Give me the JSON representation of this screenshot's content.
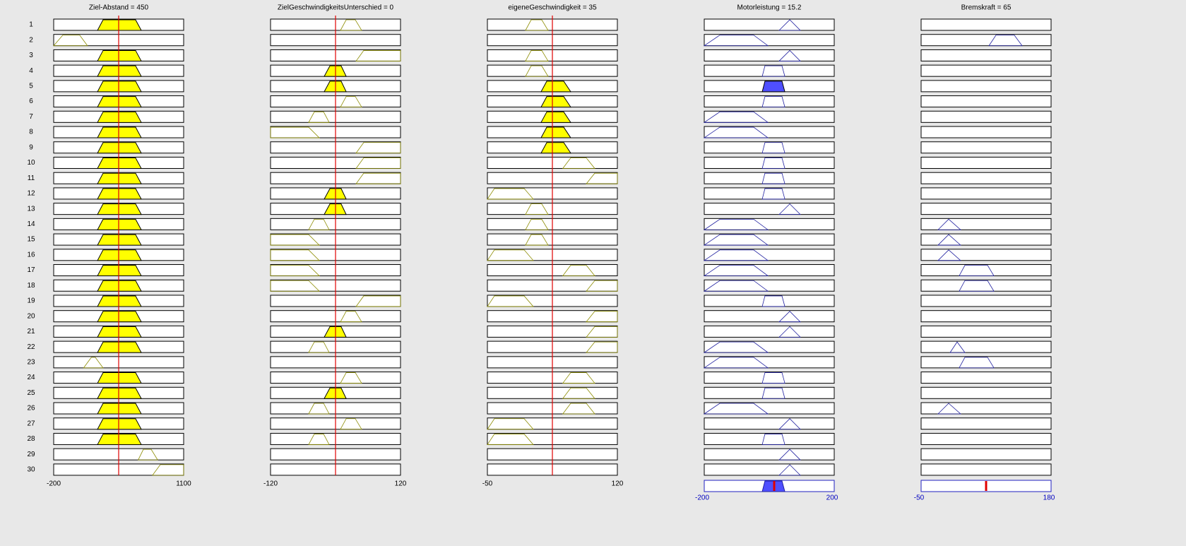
{
  "row_labels": [
    "1",
    "2",
    "3",
    "4",
    "5",
    "6",
    "7",
    "8",
    "9",
    "10",
    "11",
    "12",
    "13",
    "14",
    "15",
    "16",
    "17",
    "18",
    "19",
    "20",
    "21",
    "22",
    "23",
    "24",
    "25",
    "26",
    "27",
    "28",
    "29",
    "30"
  ],
  "variables": [
    {
      "title": "Ziel-Abstand = 450",
      "xticks": [
        -200,
        1100
      ]
    },
    {
      "title": "ZielGeschwindigkeitsUnterschied = 0",
      "xticks": [
        -120,
        120
      ]
    },
    {
      "title": "eigeneGeschwindigkeit = 35",
      "xticks": [
        -50,
        120
      ]
    },
    {
      "title": "Motorleistung = 15.2",
      "xticks": [
        -200,
        200
      ]
    },
    {
      "title": "Bremskraft = 65",
      "xticks": [
        -50,
        180
      ]
    }
  ]
}
